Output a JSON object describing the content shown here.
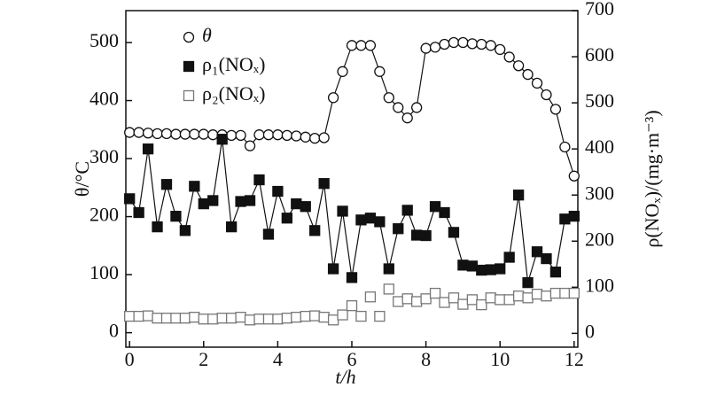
{
  "chart_data": {
    "type": "line",
    "x_label": "t/h",
    "y_label": "θ/°C",
    "y2_label": "ρ(NOₓ)/(mg·m⁻³)",
    "x": [
      0,
      0.25,
      0.5,
      0.75,
      1,
      1.25,
      1.5,
      1.75,
      2,
      2.25,
      2.5,
      2.75,
      3,
      3.25,
      3.5,
      3.75,
      4,
      4.25,
      4.5,
      4.75,
      5,
      5.25,
      5.5,
      5.75,
      6,
      6.25,
      6.5,
      6.75,
      7,
      7.25,
      7.5,
      7.75,
      8,
      8.25,
      8.5,
      8.75,
      9,
      9.25,
      9.5,
      9.75,
      10,
      10.25,
      10.5,
      10.75,
      11,
      11.25,
      11.5,
      11.75,
      12
    ],
    "xlim": [
      -0.1,
      12.1
    ],
    "xticks": [
      0,
      2,
      4,
      6,
      8,
      10,
      12
    ],
    "ylim": [
      -25,
      555
    ],
    "yticks": [
      0,
      100,
      200,
      300,
      400,
      500
    ],
    "y2lim": [
      -30,
      700
    ],
    "y2ticks": [
      0,
      100,
      200,
      300,
      400,
      500,
      600,
      700
    ],
    "legend": "upper left",
    "series": [
      {
        "name": "θ",
        "color": "#111111",
        "marker": "circle-open",
        "line": true,
        "axis": "y",
        "values": [
          345,
          345,
          344,
          343,
          343,
          342,
          342,
          342,
          342,
          341,
          341,
          340,
          340,
          322,
          341,
          341,
          341,
          340,
          339,
          337,
          335,
          336,
          405,
          450,
          495,
          495,
          495,
          450,
          405,
          388,
          370,
          388,
          490,
          492,
          497,
          500,
          500,
          498,
          497,
          495,
          488,
          475,
          460,
          445,
          430,
          410,
          385,
          320,
          270
        ]
      },
      {
        "name": "ρ₁(NOₓ)",
        "color": "#111111",
        "marker": "square-filled",
        "line": true,
        "axis": "y2",
        "values": [
          292,
          262,
          400,
          231,
          323,
          254,
          223,
          319,
          281,
          288,
          421,
          231,
          286,
          288,
          333,
          215,
          308,
          250,
          281,
          275,
          223,
          325,
          140,
          265,
          121,
          246,
          250,
          242,
          140,
          227,
          267,
          213,
          212,
          275,
          262,
          219,
          148,
          146,
          137,
          138,
          140,
          165,
          300,
          110,
          177,
          162,
          133,
          248,
          254
        ]
      },
      {
        "name": "ρ₂(NOₓ)",
        "color": "#777777",
        "marker": "square-open",
        "line": false,
        "axis": "y2",
        "values": [
          37,
          37,
          38,
          33,
          33,
          33,
          33,
          35,
          31,
          31,
          33,
          33,
          35,
          29,
          31,
          31,
          31,
          33,
          35,
          37,
          38,
          35,
          29,
          40,
          60,
          37,
          79,
          37,
          96,
          69,
          75,
          69,
          75,
          87,
          67,
          77,
          63,
          73,
          62,
          77,
          73,
          73,
          81,
          77,
          85,
          81,
          87,
          87,
          87
        ]
      }
    ]
  }
}
